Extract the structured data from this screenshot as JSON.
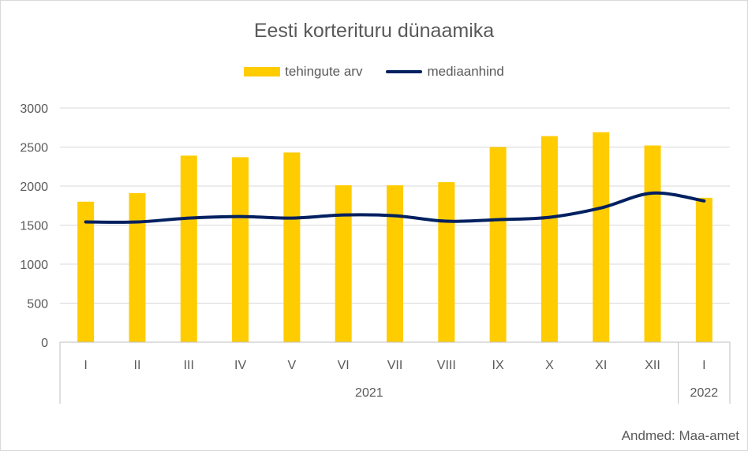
{
  "chart_data": {
    "type": "bar",
    "title": "Eesti korterituru dünaamika",
    "categories": [
      "I",
      "II",
      "III",
      "IV",
      "V",
      "VI",
      "VII",
      "VIII",
      "IX",
      "X",
      "XI",
      "XII",
      "I"
    ],
    "groups": [
      {
        "label": "2021",
        "count": 12
      },
      {
        "label": "2022",
        "count": 1
      }
    ],
    "series": [
      {
        "name": "tehingute arv",
        "type": "bar",
        "color": "#FFCC00",
        "values": [
          1800,
          1910,
          2390,
          2370,
          2430,
          2010,
          2010,
          2050,
          2500,
          2640,
          2690,
          2520,
          1850
        ]
      },
      {
        "name": "mediaanhind",
        "type": "line",
        "color": "#002060",
        "values": [
          1540,
          1540,
          1590,
          1610,
          1590,
          1630,
          1620,
          1550,
          1570,
          1600,
          1720,
          1910,
          1810
        ]
      }
    ],
    "ylim": [
      0,
      3000
    ],
    "yticks": [
      "0",
      "500",
      "1000",
      "1500",
      "2000",
      "2500",
      "3000"
    ],
    "grid": true,
    "legend": "top-center",
    "source": "Andmed: Maa-amet"
  }
}
